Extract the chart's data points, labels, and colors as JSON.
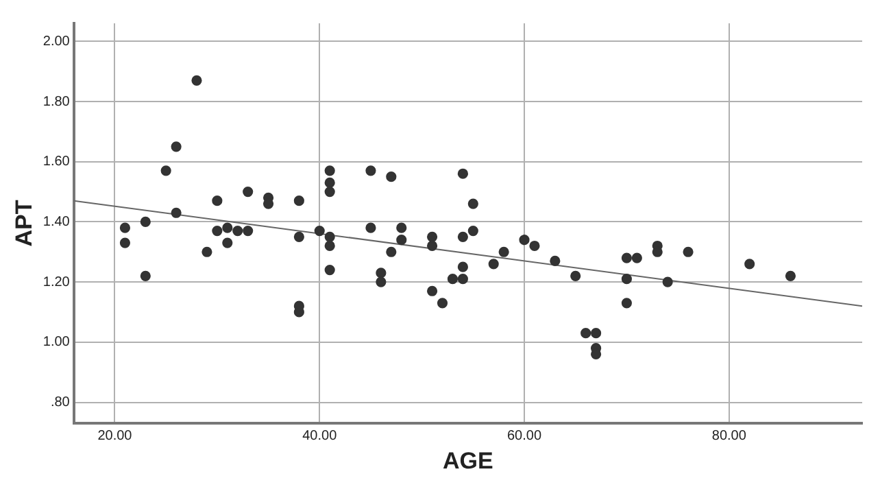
{
  "chart_data": {
    "type": "scatter",
    "xlabel": "AGE",
    "ylabel": "APT",
    "xlim": [
      16,
      93
    ],
    "ylim": [
      0.73,
      2.06
    ],
    "xticks": [
      {
        "value": 20,
        "label": "20.00"
      },
      {
        "value": 40,
        "label": "40.00"
      },
      {
        "value": 60,
        "label": "60.00"
      },
      {
        "value": 80,
        "label": "80.00"
      }
    ],
    "yticks": [
      {
        "value": 0.8,
        "label": ".80"
      },
      {
        "value": 1,
        "label": "1.00"
      },
      {
        "value": 1.2,
        "label": "1.20"
      },
      {
        "value": 1.4,
        "label": "1.40"
      },
      {
        "value": 1.6,
        "label": "1.60"
      },
      {
        "value": 1.8,
        "label": "1.80"
      },
      {
        "value": 2,
        "label": "2.00"
      }
    ],
    "grid": true,
    "legend": false,
    "marker": "circle",
    "series": [
      {
        "color": "#333333",
        "x": [
          21,
          21,
          23,
          23,
          25,
          26,
          26,
          28,
          29,
          30,
          30,
          31,
          31,
          32,
          33,
          33,
          35,
          35,
          38,
          38,
          38,
          38,
          40,
          41,
          41,
          41,
          41,
          41,
          41,
          45,
          45,
          46,
          46,
          47,
          47,
          48,
          48,
          51,
          51,
          51,
          52,
          53,
          54,
          54,
          54,
          54,
          55,
          55,
          57,
          58,
          60,
          61,
          63,
          65,
          66,
          67,
          67,
          67,
          70,
          70,
          70,
          71,
          73,
          73,
          74,
          76,
          82,
          86
        ],
        "values": [
          1.38,
          1.33,
          1.4,
          1.22,
          1.57,
          1.65,
          1.43,
          1.87,
          1.3,
          1.47,
          1.37,
          1.38,
          1.33,
          1.37,
          1.5,
          1.37,
          1.48,
          1.46,
          1.47,
          1.35,
          1.12,
          1.1,
          1.37,
          1.57,
          1.53,
          1.5,
          1.35,
          1.32,
          1.24,
          1.57,
          1.38,
          1.23,
          1.2,
          1.55,
          1.3,
          1.38,
          1.34,
          1.35,
          1.32,
          1.17,
          1.13,
          1.21,
          1.56,
          1.35,
          1.25,
          1.21,
          1.46,
          1.37,
          1.26,
          1.3,
          1.34,
          1.32,
          1.27,
          1.22,
          1.03,
          1.03,
          0.98,
          0.96,
          1.28,
          1.21,
          1.13,
          1.28,
          1.32,
          1.3,
          1.2,
          1.3,
          1.26,
          1.22
        ]
      },
      {
        "type": "line",
        "color": "#666666",
        "marker": "none",
        "line_style": "solid",
        "x": [
          16,
          93
        ],
        "values": [
          1.47,
          1.12
        ]
      }
    ]
  }
}
